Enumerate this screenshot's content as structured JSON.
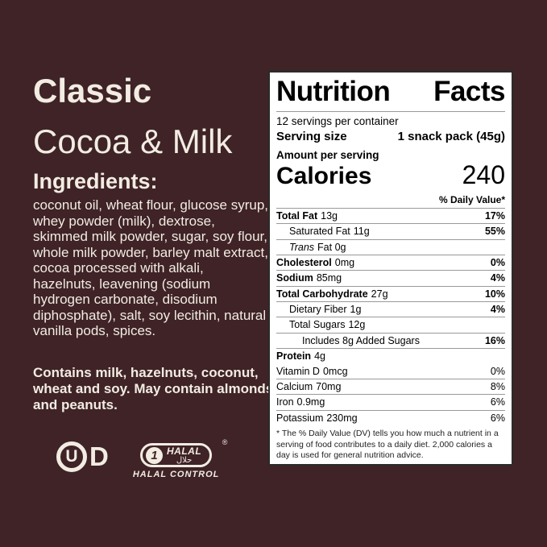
{
  "colors": {
    "background": "#3f2326",
    "cream": "#f2ece3",
    "label-bg": "#ffffff",
    "label-text": "#000000",
    "hairline": "#999999"
  },
  "left": {
    "title_line1": "Classic",
    "title_line2": "Cocoa & Milk",
    "ingredients_heading": "Ingredients:",
    "ingredients_text": "coconut oil, wheat flour, glucose syrup, whey powder (milk), dextrose, skimmed milk powder, sugar, soy flour, whole milk powder, barley malt extract, cocoa processed with alkali, hazelnuts, leavening (sodium hydrogen carbonate, disodium diphosphate), salt, soy lecithin, natural vanilla pods, spices.",
    "allergen_text": "Contains milk, hazelnuts, coconut, wheat and soy. May contain almonds and peanuts.",
    "certifications": {
      "kosher": {
        "circle_letter": "U",
        "suffix_letter": "D"
      },
      "halal": {
        "crescent_glyph": "1",
        "label": "HALAL",
        "arabic": "حلال",
        "registered": "®",
        "caption": "HALAL CONTROL"
      }
    }
  },
  "nutrition": {
    "title": "Nutrition Facts",
    "servings_per_container": "12 servings per container",
    "serving_size_label": "Serving size",
    "serving_size_value": "1 snack pack (45g)",
    "amount_per_serving": "Amount per serving",
    "calories_label": "Calories",
    "calories_value": "240",
    "daily_value_header": "% Daily Value*",
    "rows": [
      {
        "name": "Total Fat",
        "amount": "13g",
        "dv": "17%"
      },
      {
        "name": "Saturated Fat",
        "amount": "11g",
        "dv": "55%"
      },
      {
        "name": "Trans",
        "amount": "Fat 0g",
        "dv": ""
      },
      {
        "name": "Cholesterol",
        "amount": "0mg",
        "dv": "0%"
      },
      {
        "name": "Sodium",
        "amount": "85mg",
        "dv": "4%"
      },
      {
        "name": "Total Carbohydrate",
        "amount": "27g",
        "dv": "10%"
      },
      {
        "name": "Dietary Fiber",
        "amount": "1g",
        "dv": "4%"
      },
      {
        "name": "Total Sugars",
        "amount": "12g",
        "dv": ""
      },
      {
        "name": "Includes 8g Added Sugars",
        "amount": "",
        "dv": "16%"
      },
      {
        "name": "Protein",
        "amount": "4g",
        "dv": ""
      }
    ],
    "vitamins": [
      {
        "name": "Vitamin D",
        "amount": "0mcg",
        "dv": "0%"
      },
      {
        "name": "Calcium",
        "amount": "70mg",
        "dv": "8%"
      },
      {
        "name": "Iron",
        "amount": "0.9mg",
        "dv": "6%"
      },
      {
        "name": "Potassium",
        "amount": "230mg",
        "dv": "6%"
      }
    ],
    "footnote": "* The % Daily Value (DV) tells you how much a nutrient in a serving of food contributes to a daily diet. 2,000 calories a day is used for general nutrition advice."
  }
}
